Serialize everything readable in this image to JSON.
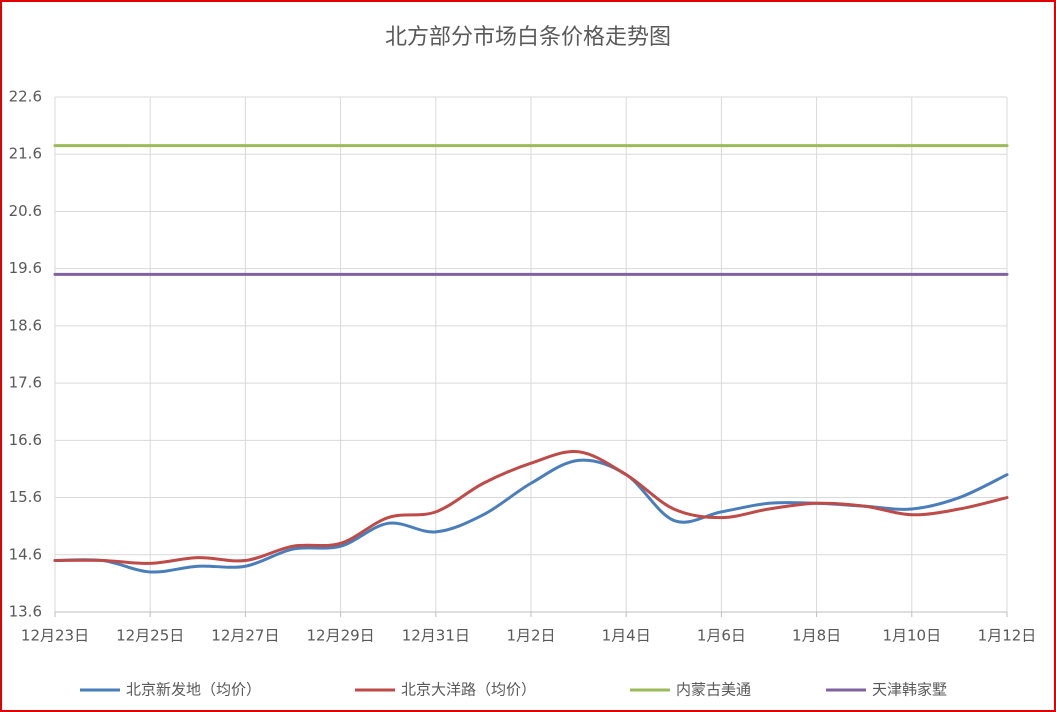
{
  "chart_data": {
    "type": "line",
    "title": "北方部分市场白条价格走势图",
    "categories": [
      "12月23日",
      null,
      "12月25日",
      null,
      "12月27日",
      null,
      "12月29日",
      null,
      "12月31日",
      null,
      "1月2日",
      null,
      "1月4日",
      null,
      "1月6日",
      null,
      "1月8日",
      null,
      "1月10日",
      null,
      "1月12日"
    ],
    "series": [
      {
        "name": "北京新发地（均价）",
        "color": "#4a7ebb",
        "values": [
          14.5,
          14.5,
          14.3,
          14.4,
          14.4,
          14.7,
          14.75,
          15.15,
          15.0,
          15.3,
          15.85,
          16.25,
          16.0,
          15.2,
          15.35,
          15.5,
          15.5,
          15.45,
          15.4,
          15.6,
          16.0
        ]
      },
      {
        "name": "北京大洋路（均价）",
        "color": "#be4b48",
        "values": [
          14.5,
          14.5,
          14.45,
          14.55,
          14.5,
          14.75,
          14.8,
          15.25,
          15.35,
          15.85,
          16.2,
          16.4,
          16.0,
          15.4,
          15.25,
          15.4,
          15.5,
          15.45,
          15.3,
          15.4,
          15.6
        ]
      },
      {
        "name": "内蒙古美通",
        "color": "#9bbb59",
        "values": [
          21.75,
          21.75,
          21.75,
          21.75,
          21.75,
          21.75,
          21.75,
          21.75,
          21.75,
          21.75,
          21.75,
          21.75,
          21.75,
          21.75,
          21.75,
          21.75,
          21.75,
          21.75,
          21.75,
          21.75,
          21.75
        ]
      },
      {
        "name": "天津韩家墅",
        "color": "#7f63a1",
        "values": [
          19.5,
          19.5,
          19.5,
          19.5,
          19.5,
          19.5,
          19.5,
          19.5,
          19.5,
          19.5,
          19.5,
          19.5,
          19.5,
          19.5,
          19.5,
          19.5,
          19.5,
          19.5,
          19.5,
          19.5,
          19.5
        ]
      }
    ],
    "ylim": [
      13.6,
      22.6
    ],
    "yticks": [
      13.6,
      14.6,
      15.6,
      16.6,
      17.6,
      18.6,
      19.6,
      20.6,
      21.6,
      22.6
    ],
    "grid": true,
    "legend": "bottom"
  }
}
